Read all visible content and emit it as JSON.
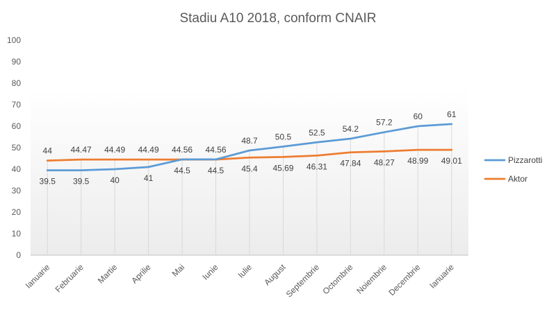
{
  "chart_data": {
    "type": "line",
    "title": "Stadiu A10 2018, conform CNAIR",
    "xlabel": "",
    "ylabel": "",
    "ylim": [
      0,
      100
    ],
    "yticks": [
      0,
      10,
      20,
      30,
      40,
      50,
      60,
      70,
      80,
      90,
      100
    ],
    "categories": [
      "Ianuarie",
      "Februarie",
      "Martie",
      "Aprilie",
      "Mai",
      "Iunie",
      "Iulie",
      "August",
      "Septembrie",
      "Octombrie",
      "Noiembrie",
      "Decembrie",
      "Ianuarie"
    ],
    "series": [
      {
        "name": "Pizzarotti",
        "color": "#5B9BD5",
        "values": [
          39.5,
          39.5,
          40,
          41,
          44.56,
          44.56,
          48.7,
          50.5,
          52.5,
          54.2,
          57.2,
          60,
          61
        ],
        "labels": [
          "39.5",
          "39.5",
          "40",
          "41",
          "44.56",
          "44.56",
          "48.7",
          "50.5",
          "52.5",
          "54.2",
          "57.2",
          "60",
          "61"
        ]
      },
      {
        "name": "Aktor",
        "color": "#ED7D31",
        "values": [
          44,
          44.47,
          44.49,
          44.49,
          44.5,
          44.5,
          45.4,
          45.69,
          46.31,
          47.84,
          48.27,
          48.99,
          49.01
        ],
        "labels": [
          "44",
          "44.47",
          "44.49",
          "44.49",
          "44.5",
          "44.5",
          "45.4",
          "45.69",
          "46.31",
          "47.84",
          "48.27",
          "48.99",
          "49.01"
        ]
      }
    ],
    "legend_position": "right",
    "grid": false
  }
}
